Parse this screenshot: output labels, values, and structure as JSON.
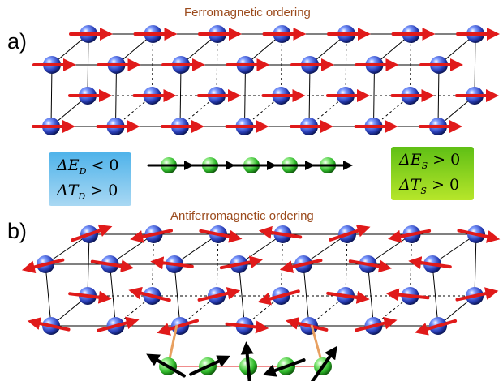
{
  "panel_a": {
    "label": "a)",
    "title": "Ferromagnetic ordering"
  },
  "panel_b": {
    "label": "b)",
    "title": "Antiferromagnetic ordering"
  },
  "box_left": {
    "line1": {
      "symbol": "ΔE",
      "sub": "D",
      "relation": " < 0"
    },
    "line2": {
      "symbol": "ΔT",
      "sub": "D",
      "relation": " > 0"
    },
    "color_top": "#4fb3ea",
    "color_bottom": "#a9d8f3"
  },
  "box_right": {
    "line1": {
      "symbol": "ΔE",
      "sub": "S",
      "relation": " > 0"
    },
    "line2": {
      "symbol": "ΔT",
      "sub": "S",
      "relation": " > 0"
    },
    "color_top": "#5fbf15",
    "color_bottom": "#b7e62a"
  },
  "colors": {
    "lattice_atom": "#2a3fb8",
    "molecule_atom": "#2fb82a",
    "spin_arrow": "#e01a1a",
    "molecule_arrow": "#000000",
    "link": "#e8a060"
  }
}
